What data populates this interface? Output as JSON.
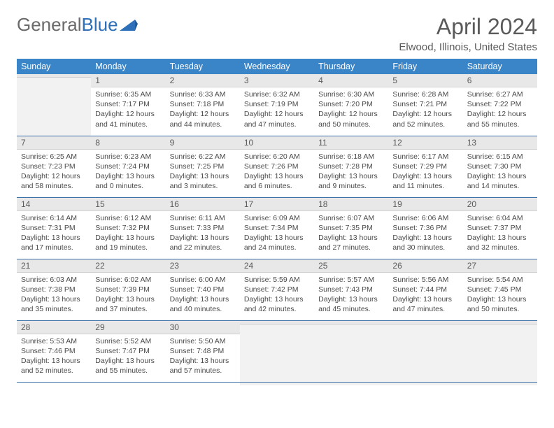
{
  "logo": {
    "word1": "General",
    "word2": "Blue"
  },
  "title": "April 2024",
  "location": "Elwood, Illinois, United States",
  "colors": {
    "header_bg": "#3a84c8",
    "header_text": "#ffffff",
    "daynum_bg": "#e8e8e8",
    "cell_border": "#3a6fa8",
    "text": "#4a4a4a",
    "logo_blue": "#2d6fb8"
  },
  "day_headers": [
    "Sunday",
    "Monday",
    "Tuesday",
    "Wednesday",
    "Thursday",
    "Friday",
    "Saturday"
  ],
  "weeks": [
    [
      {
        "n": "",
        "sunrise": "",
        "sunset": "",
        "daylight": ""
      },
      {
        "n": "1",
        "sunrise": "Sunrise: 6:35 AM",
        "sunset": "Sunset: 7:17 PM",
        "daylight": "Daylight: 12 hours and 41 minutes."
      },
      {
        "n": "2",
        "sunrise": "Sunrise: 6:33 AM",
        "sunset": "Sunset: 7:18 PM",
        "daylight": "Daylight: 12 hours and 44 minutes."
      },
      {
        "n": "3",
        "sunrise": "Sunrise: 6:32 AM",
        "sunset": "Sunset: 7:19 PM",
        "daylight": "Daylight: 12 hours and 47 minutes."
      },
      {
        "n": "4",
        "sunrise": "Sunrise: 6:30 AM",
        "sunset": "Sunset: 7:20 PM",
        "daylight": "Daylight: 12 hours and 50 minutes."
      },
      {
        "n": "5",
        "sunrise": "Sunrise: 6:28 AM",
        "sunset": "Sunset: 7:21 PM",
        "daylight": "Daylight: 12 hours and 52 minutes."
      },
      {
        "n": "6",
        "sunrise": "Sunrise: 6:27 AM",
        "sunset": "Sunset: 7:22 PM",
        "daylight": "Daylight: 12 hours and 55 minutes."
      }
    ],
    [
      {
        "n": "7",
        "sunrise": "Sunrise: 6:25 AM",
        "sunset": "Sunset: 7:23 PM",
        "daylight": "Daylight: 12 hours and 58 minutes."
      },
      {
        "n": "8",
        "sunrise": "Sunrise: 6:23 AM",
        "sunset": "Sunset: 7:24 PM",
        "daylight": "Daylight: 13 hours and 0 minutes."
      },
      {
        "n": "9",
        "sunrise": "Sunrise: 6:22 AM",
        "sunset": "Sunset: 7:25 PM",
        "daylight": "Daylight: 13 hours and 3 minutes."
      },
      {
        "n": "10",
        "sunrise": "Sunrise: 6:20 AM",
        "sunset": "Sunset: 7:26 PM",
        "daylight": "Daylight: 13 hours and 6 minutes."
      },
      {
        "n": "11",
        "sunrise": "Sunrise: 6:18 AM",
        "sunset": "Sunset: 7:28 PM",
        "daylight": "Daylight: 13 hours and 9 minutes."
      },
      {
        "n": "12",
        "sunrise": "Sunrise: 6:17 AM",
        "sunset": "Sunset: 7:29 PM",
        "daylight": "Daylight: 13 hours and 11 minutes."
      },
      {
        "n": "13",
        "sunrise": "Sunrise: 6:15 AM",
        "sunset": "Sunset: 7:30 PM",
        "daylight": "Daylight: 13 hours and 14 minutes."
      }
    ],
    [
      {
        "n": "14",
        "sunrise": "Sunrise: 6:14 AM",
        "sunset": "Sunset: 7:31 PM",
        "daylight": "Daylight: 13 hours and 17 minutes."
      },
      {
        "n": "15",
        "sunrise": "Sunrise: 6:12 AM",
        "sunset": "Sunset: 7:32 PM",
        "daylight": "Daylight: 13 hours and 19 minutes."
      },
      {
        "n": "16",
        "sunrise": "Sunrise: 6:11 AM",
        "sunset": "Sunset: 7:33 PM",
        "daylight": "Daylight: 13 hours and 22 minutes."
      },
      {
        "n": "17",
        "sunrise": "Sunrise: 6:09 AM",
        "sunset": "Sunset: 7:34 PM",
        "daylight": "Daylight: 13 hours and 24 minutes."
      },
      {
        "n": "18",
        "sunrise": "Sunrise: 6:07 AM",
        "sunset": "Sunset: 7:35 PM",
        "daylight": "Daylight: 13 hours and 27 minutes."
      },
      {
        "n": "19",
        "sunrise": "Sunrise: 6:06 AM",
        "sunset": "Sunset: 7:36 PM",
        "daylight": "Daylight: 13 hours and 30 minutes."
      },
      {
        "n": "20",
        "sunrise": "Sunrise: 6:04 AM",
        "sunset": "Sunset: 7:37 PM",
        "daylight": "Daylight: 13 hours and 32 minutes."
      }
    ],
    [
      {
        "n": "21",
        "sunrise": "Sunrise: 6:03 AM",
        "sunset": "Sunset: 7:38 PM",
        "daylight": "Daylight: 13 hours and 35 minutes."
      },
      {
        "n": "22",
        "sunrise": "Sunrise: 6:02 AM",
        "sunset": "Sunset: 7:39 PM",
        "daylight": "Daylight: 13 hours and 37 minutes."
      },
      {
        "n": "23",
        "sunrise": "Sunrise: 6:00 AM",
        "sunset": "Sunset: 7:40 PM",
        "daylight": "Daylight: 13 hours and 40 minutes."
      },
      {
        "n": "24",
        "sunrise": "Sunrise: 5:59 AM",
        "sunset": "Sunset: 7:42 PM",
        "daylight": "Daylight: 13 hours and 42 minutes."
      },
      {
        "n": "25",
        "sunrise": "Sunrise: 5:57 AM",
        "sunset": "Sunset: 7:43 PM",
        "daylight": "Daylight: 13 hours and 45 minutes."
      },
      {
        "n": "26",
        "sunrise": "Sunrise: 5:56 AM",
        "sunset": "Sunset: 7:44 PM",
        "daylight": "Daylight: 13 hours and 47 minutes."
      },
      {
        "n": "27",
        "sunrise": "Sunrise: 5:54 AM",
        "sunset": "Sunset: 7:45 PM",
        "daylight": "Daylight: 13 hours and 50 minutes."
      }
    ],
    [
      {
        "n": "28",
        "sunrise": "Sunrise: 5:53 AM",
        "sunset": "Sunset: 7:46 PM",
        "daylight": "Daylight: 13 hours and 52 minutes."
      },
      {
        "n": "29",
        "sunrise": "Sunrise: 5:52 AM",
        "sunset": "Sunset: 7:47 PM",
        "daylight": "Daylight: 13 hours and 55 minutes."
      },
      {
        "n": "30",
        "sunrise": "Sunrise: 5:50 AM",
        "sunset": "Sunset: 7:48 PM",
        "daylight": "Daylight: 13 hours and 57 minutes."
      },
      {
        "n": "",
        "sunrise": "",
        "sunset": "",
        "daylight": ""
      },
      {
        "n": "",
        "sunrise": "",
        "sunset": "",
        "daylight": ""
      },
      {
        "n": "",
        "sunrise": "",
        "sunset": "",
        "daylight": ""
      },
      {
        "n": "",
        "sunrise": "",
        "sunset": "",
        "daylight": ""
      }
    ]
  ]
}
